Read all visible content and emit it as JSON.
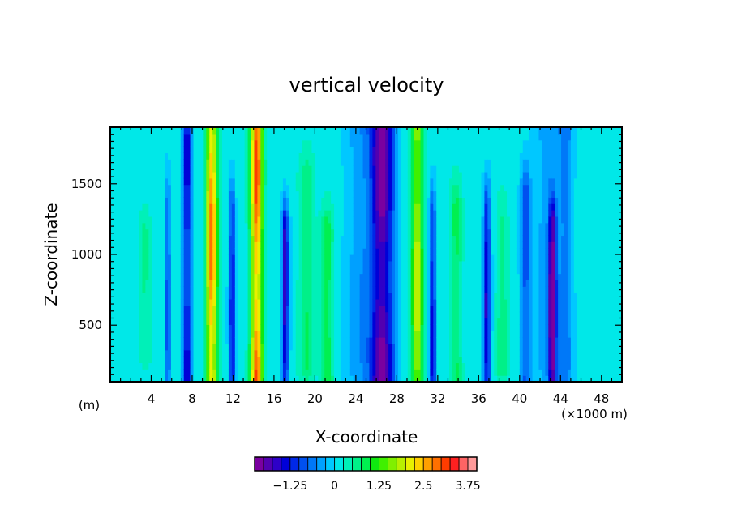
{
  "chart_data": {
    "type": "heatmap",
    "title": "vertical velocity",
    "xlabel": "X-coordinate",
    "ylabel": "Z-coordinate",
    "x_unit_left": "(m)",
    "x_unit_right": "(×1000 m)",
    "xlim": [
      0,
      50
    ],
    "ylim": [
      100,
      1900
    ],
    "x_ticks": [
      4,
      8,
      12,
      16,
      20,
      24,
      28,
      32,
      36,
      40,
      44,
      48
    ],
    "y_ticks": [
      500,
      1000,
      1500
    ],
    "background_value": 0.1,
    "columns": [
      {
        "x": 5.6,
        "w": 0.25,
        "a": -1.2,
        "z0": 100,
        "z1": 1350
      },
      {
        "x": 7.5,
        "w": 0.45,
        "a": -1.6,
        "z0": 100,
        "z1": 1800
      },
      {
        "x": 9.9,
        "w": 0.55,
        "a": 2.9,
        "z0": 100,
        "z1": 1900
      },
      {
        "x": 11.9,
        "w": 0.3,
        "a": -1.6,
        "z0": 100,
        "z1": 1300
      },
      {
        "x": 14.3,
        "w": 0.6,
        "a": 3.1,
        "z0": 100,
        "z1": 1900
      },
      {
        "x": 17.1,
        "w": 0.35,
        "a": -1.9,
        "z0": 100,
        "z1": 1150
      },
      {
        "x": 19.2,
        "w": 0.8,
        "a": 0.7,
        "z0": 200,
        "z1": 1500
      },
      {
        "x": 21.2,
        "w": 0.6,
        "a": 1.0,
        "z0": 100,
        "z1": 1100
      },
      {
        "x": 26.6,
        "w": 1.1,
        "a": -2.4,
        "z0": 100,
        "z1": 1900
      },
      {
        "x": 30.0,
        "w": 0.55,
        "a": 2.0,
        "z0": 100,
        "z1": 1900
      },
      {
        "x": 31.5,
        "w": 0.3,
        "a": -1.6,
        "z0": 100,
        "z1": 1250
      },
      {
        "x": 33.8,
        "w": 0.6,
        "a": 0.8,
        "z0": 100,
        "z1": 1300
      },
      {
        "x": 36.8,
        "w": 0.35,
        "a": -1.7,
        "z0": 100,
        "z1": 1300
      },
      {
        "x": 38.3,
        "w": 0.6,
        "a": 0.6,
        "z0": 200,
        "z1": 1200
      },
      {
        "x": 40.6,
        "w": 0.5,
        "a": -1.1,
        "z0": 100,
        "z1": 1400
      },
      {
        "x": 43.2,
        "w": 0.35,
        "a": -2.1,
        "z0": 100,
        "z1": 1200
      },
      {
        "x": 44.5,
        "w": 0.7,
        "a": -0.7,
        "z0": 100,
        "z1": 1900
      },
      {
        "x": 24.5,
        "w": 1.5,
        "a": -0.6,
        "z0": 100,
        "z1": 1900
      },
      {
        "x": 42.8,
        "w": 1.4,
        "a": -0.6,
        "z0": 100,
        "z1": 1900
      },
      {
        "x": 3.4,
        "w": 0.6,
        "a": 0.5,
        "z0": 300,
        "z1": 1100
      }
    ],
    "colorbar": {
      "ticks": [
        "−1.25",
        "0",
        "1.25",
        "2.5",
        "3.75"
      ],
      "levels": [
        -2.0,
        -1.75,
        -1.5,
        -1.25,
        -1.0,
        -0.75,
        -0.5,
        -0.25,
        0,
        0.25,
        0.5,
        0.75,
        1.0,
        1.25,
        1.5,
        1.75,
        2.0,
        2.25,
        2.5,
        2.75,
        3.0,
        3.25,
        3.5,
        3.75
      ],
      "colors": [
        "#7a00a0",
        "#5200b0",
        "#2e00c8",
        "#0000d8",
        "#0028e8",
        "#0050f0",
        "#0078f8",
        "#00a0ff",
        "#00c8ff",
        "#00e8e8",
        "#00f0b8",
        "#00f088",
        "#00f050",
        "#10e810",
        "#40f000",
        "#80f000",
        "#b8f000",
        "#e8f000",
        "#ffd000",
        "#ffa000",
        "#ff7000",
        "#ff3c00",
        "#ff2020",
        "#ff6464",
        "#ff9a9a"
      ]
    }
  }
}
